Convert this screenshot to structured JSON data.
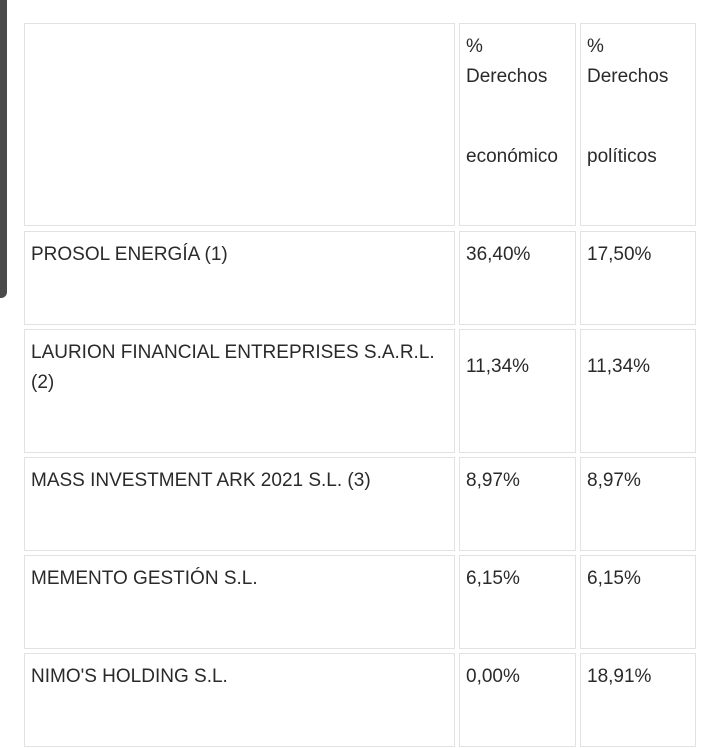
{
  "table": {
    "header": {
      "col2": {
        "line1": "%",
        "line2": "Derechos",
        "line3": "económico"
      },
      "col3": {
        "line1": "%",
        "line2": "Derechos",
        "line3": "políticos"
      }
    },
    "rows": [
      {
        "name": "PROSOL ENERGÍA (1)",
        "economic": "36,40%",
        "political": "17,50%"
      },
      {
        "name": "LAURION FINANCIAL ENTREPRISES S.A.R.L. (2)",
        "economic": "11,34%",
        "political": "11,34%"
      },
      {
        "name": "MASS INVESTMENT ARK 2021 S.L. (3)",
        "economic": "8,97%",
        "political": "8,97%"
      },
      {
        "name": "MEMENTO GESTIÓN S.L.",
        "economic": "6,15%",
        "political": "6,15%"
      },
      {
        "name": "NIMO'S HOLDING S.L.",
        "economic": "0,00%",
        "political": "18,91%"
      }
    ]
  }
}
